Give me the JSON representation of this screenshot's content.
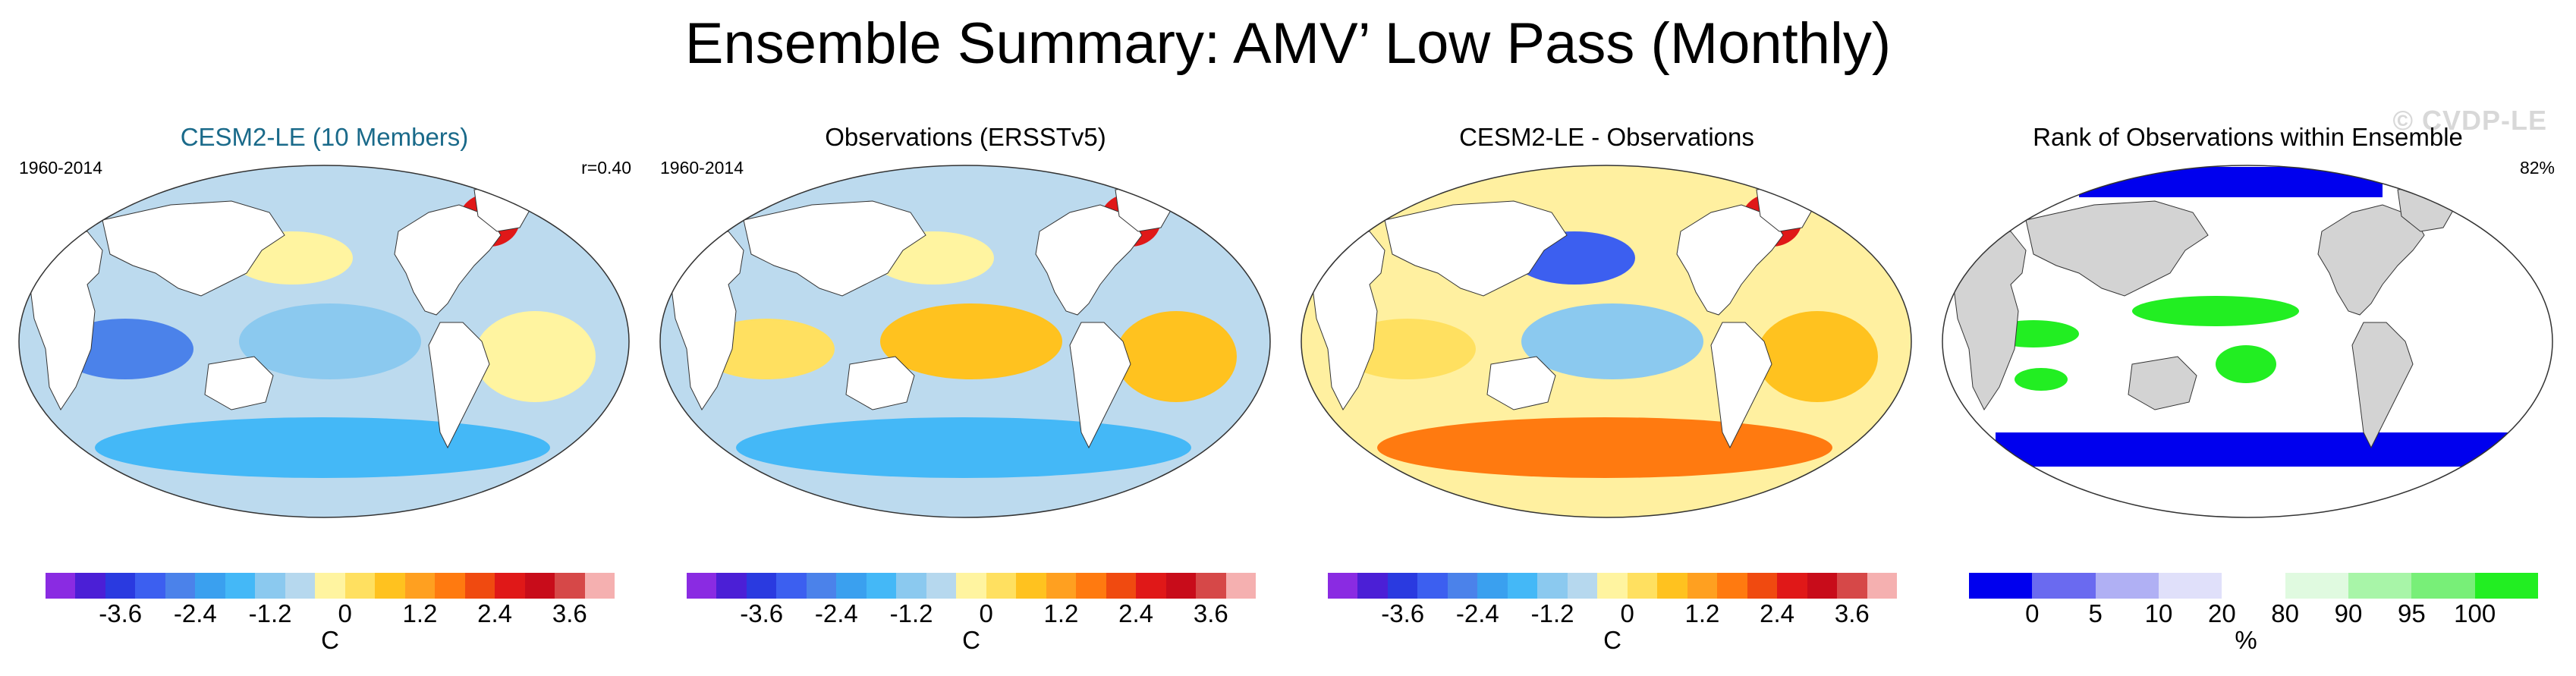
{
  "title": "Ensemble Summary: AMV’ Low Pass (Monthly)",
  "watermark": "© CVDP-LE",
  "panels": [
    {
      "title": "CESM2-LE (10 Members)",
      "title_color": "#1a6a8a",
      "period": "1960-2014",
      "stat": "r=0.40",
      "colorbar": {
        "colors": [
          "#8a2be2",
          "#4b1fd6",
          "#2a3ae0",
          "#3c5ff0",
          "#4b82ea",
          "#3aa0ef",
          "#44b8f7",
          "#8bc9ef",
          "#b6d8ee",
          "#fff4a0",
          "#ffe060",
          "#ffc21f",
          "#ffa020",
          "#ff7a10",
          "#f04a10",
          "#e01818",
          "#c80c1a",
          "#d64848",
          "#f5b0b0"
        ],
        "ticks": [
          "-3.6",
          "-2.4",
          "-1.2",
          "0",
          "1.2",
          "2.4",
          "3.6"
        ],
        "tick_positions": [
          2.5,
          5,
          7.5,
          10,
          12.5,
          15,
          17.5
        ],
        "unit": "C"
      }
    },
    {
      "title": "Observations (ERSSTv5)",
      "title_color": "#000000",
      "period": "1960-2014",
      "stat": "",
      "colorbar": {
        "colors": [
          "#8a2be2",
          "#4b1fd6",
          "#2a3ae0",
          "#3c5ff0",
          "#4b82ea",
          "#3aa0ef",
          "#44b8f7",
          "#8bc9ef",
          "#b6d8ee",
          "#fff4a0",
          "#ffe060",
          "#ffc21f",
          "#ffa020",
          "#ff7a10",
          "#f04a10",
          "#e01818",
          "#c80c1a",
          "#d64848",
          "#f5b0b0"
        ],
        "ticks": [
          "-3.6",
          "-2.4",
          "-1.2",
          "0",
          "1.2",
          "2.4",
          "3.6"
        ],
        "tick_positions": [
          2.5,
          5,
          7.5,
          10,
          12.5,
          15,
          17.5
        ],
        "unit": "C"
      }
    },
    {
      "title": "CESM2-LE - Observations",
      "title_color": "#000000",
      "period": "",
      "stat": "",
      "colorbar": {
        "colors": [
          "#8a2be2",
          "#4b1fd6",
          "#2a3ae0",
          "#3c5ff0",
          "#4b82ea",
          "#3aa0ef",
          "#44b8f7",
          "#8bc9ef",
          "#b6d8ee",
          "#fff4a0",
          "#ffe060",
          "#ffc21f",
          "#ffa020",
          "#ff7a10",
          "#f04a10",
          "#e01818",
          "#c80c1a",
          "#d64848",
          "#f5b0b0"
        ],
        "ticks": [
          "-3.6",
          "-2.4",
          "-1.2",
          "0",
          "1.2",
          "2.4",
          "3.6"
        ],
        "tick_positions": [
          2.5,
          5,
          7.5,
          10,
          12.5,
          15,
          17.5
        ],
        "unit": "C"
      }
    },
    {
      "title": "Rank of Observations within Ensemble",
      "title_color": "#000000",
      "period": "",
      "stat": "82%",
      "colorbar": {
        "colors": [
          "#0000ee",
          "#6a6af0",
          "#b0b0f4",
          "#e0e0fa",
          "#ffffff",
          "#e0fae0",
          "#a8f5a8",
          "#78ef78",
          "#22ee22"
        ],
        "ticks": [
          "0",
          "5",
          "10",
          "20",
          "80",
          "90",
          "95",
          "100"
        ],
        "tick_positions": [
          1,
          2,
          3,
          4,
          5,
          6,
          7,
          8
        ],
        "unit": "%"
      }
    }
  ]
}
